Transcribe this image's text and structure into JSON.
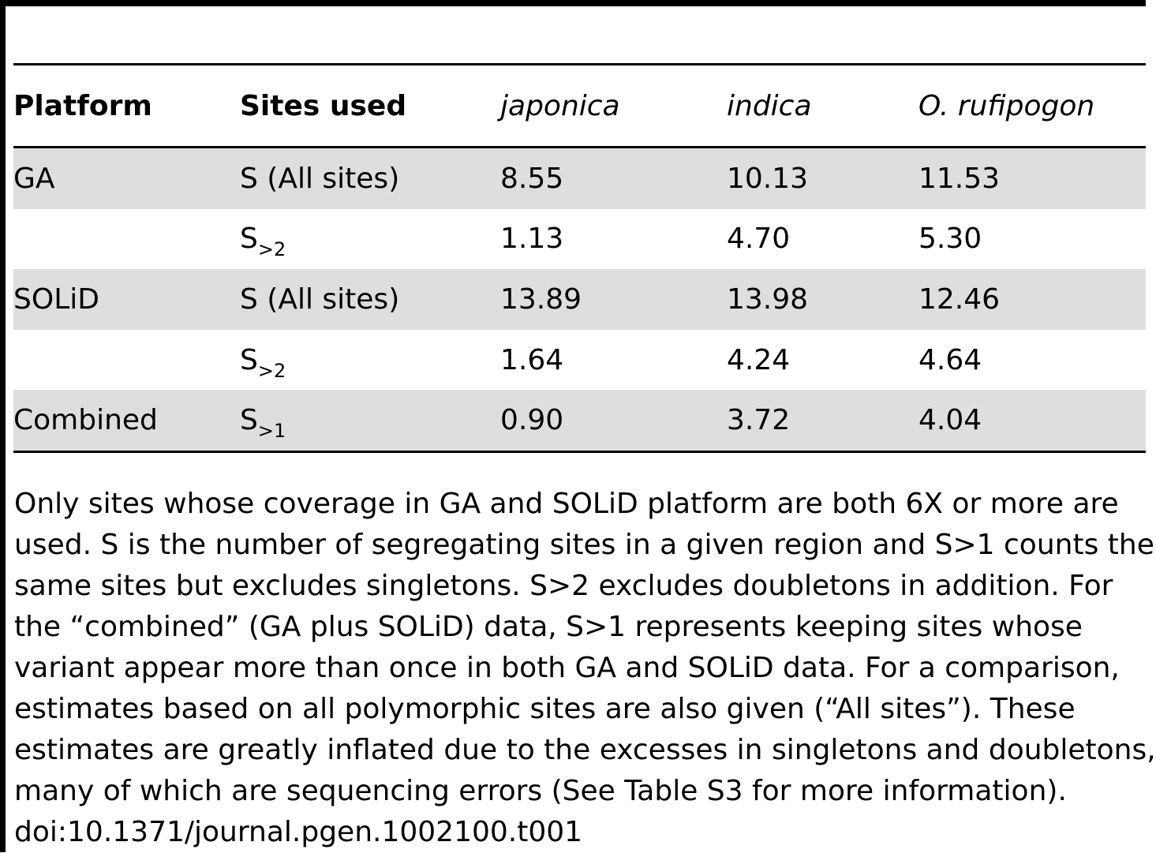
{
  "table": {
    "headers": {
      "platform": "Platform",
      "sites_used": "Sites used",
      "japonica": "japonica",
      "indica": "indica",
      "rufipogon": "O. rufipogon"
    },
    "rows": [
      {
        "platform": "GA",
        "site_base": "S (All sites)",
        "site_sub": "",
        "japonica": "8.55",
        "indica": "10.13",
        "rufipogon": "11.53"
      },
      {
        "platform": "",
        "site_base": "S",
        "site_sub": ">2",
        "japonica": "1.13",
        "indica": "4.70",
        "rufipogon": "5.30"
      },
      {
        "platform": "SOLiD",
        "site_base": "S (All sites)",
        "site_sub": "",
        "japonica": "13.89",
        "indica": "13.98",
        "rufipogon": "12.46"
      },
      {
        "platform": "",
        "site_base": "S",
        "site_sub": ">2",
        "japonica": "1.64",
        "indica": "4.24",
        "rufipogon": "4.64"
      },
      {
        "platform": "Combined",
        "site_base": "S",
        "site_sub": ">1",
        "japonica": "0.90",
        "indica": "3.72",
        "rufipogon": "4.04"
      }
    ]
  },
  "footnote": {
    "lines": [
      "Only sites whose coverage in GA and SOLiD platform are both 6X or more are",
      "used. S is the number of segregating sites in a given region and S>1 counts the",
      "same sites but excludes singletons. S>2 excludes doubletons in addition. For",
      "the “combined” (GA plus SOLiD) data, S>1 represents keeping sites whose",
      "variant appear more than once in both GA and SOLiD data. For a comparison,",
      "estimates based on all polymorphic sites are also given (“All sites”). These",
      "estimates are greatly inflated due to the excesses in singletons and doubletons,",
      "many of which are sequencing errors (See Table S3 for more information).",
      "doi:10.1371/journal.pgen.1002100.t001"
    ]
  },
  "colors": {
    "shaded_row": "#dedede",
    "rule": "#000000"
  }
}
